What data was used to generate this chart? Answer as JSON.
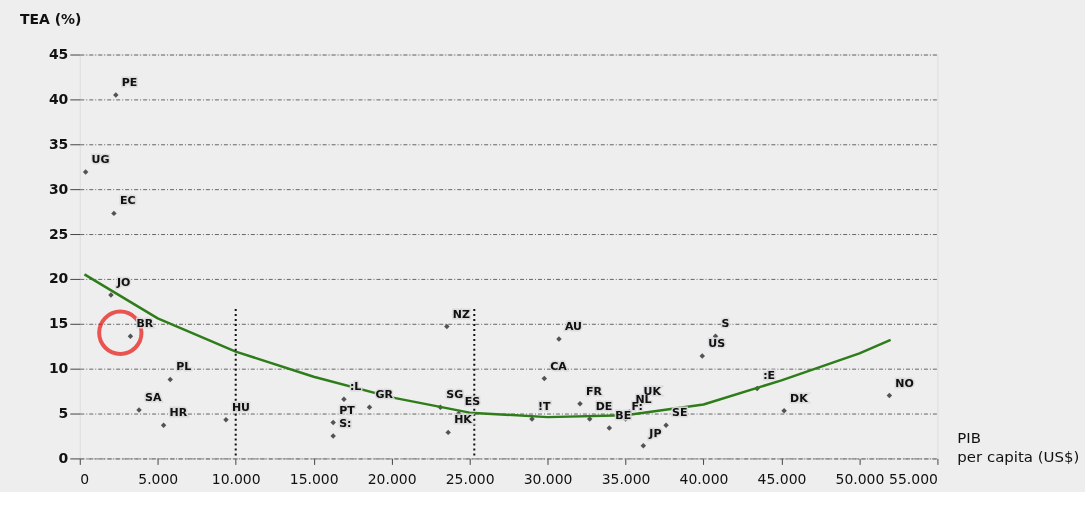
{
  "chart_data": {
    "type": "scatter",
    "ylabel": "TEA (%)",
    "xlabel": "PIB per capita (US$)",
    "series": [
      {
        "type": "scatter",
        "color": "#111111",
        "marker": "diamond",
        "x": [
          2310,
          375,
          2190,
          2000,
          3250,
          3800,
          5375,
          5800,
          9375,
          16940,
          16250,
          16250,
          18580,
          23125,
          24300,
          23625,
          23540,
          29000,
          30730,
          29790,
          32080,
          32700,
          33960,
          35250,
          35000,
          35770,
          37600,
          36140,
          39920,
          40770,
          43440,
          45170,
          51920
        ],
        "values": [
          40.5,
          31.9,
          27.3,
          18.2,
          13.6,
          5.4,
          3.7,
          8.8,
          4.3,
          6.6,
          4.0,
          2.5,
          5.7,
          5.7,
          5.0,
          2.9,
          14.7,
          4.4,
          13.3,
          8.9,
          6.1,
          4.4,
          3.4,
          5.2,
          4.4,
          6.1,
          3.7,
          1.4,
          11.4,
          13.6,
          7.8,
          5.3,
          7.0
        ],
        "value_labels": [
          "PE",
          "UG",
          "EC",
          "JO",
          "BR",
          "SA",
          "HR",
          "PL",
          "HU",
          ":L",
          "PT",
          "S:",
          "GR",
          "SG",
          "ES",
          "HK",
          "NZ",
          "!T",
          "AU",
          "CA",
          "FR",
          "DE",
          "BE",
          "NL",
          "F:",
          "UK",
          "SE",
          "JP",
          "US",
          "S",
          ":E",
          "DK",
          "NO"
        ]
      },
      {
        "type": "line",
        "color": "#2e7d1a",
        "x": [
          300,
          5000,
          10000,
          15000,
          20000,
          25000,
          30000,
          35000,
          40000,
          45000,
          50000,
          52000
        ],
        "values": [
          20.5,
          15.6,
          11.9,
          9.1,
          6.8,
          5.1,
          4.6,
          4.8,
          6.0,
          8.7,
          11.7,
          13.2
        ]
      },
      {
        "type": "scatter",
        "color": "#e8130f",
        "marker": "circle",
        "x": [
          2600
        ],
        "values": [
          14.0
        ]
      }
    ],
    "xlim": [
      0,
      55000
    ],
    "ylim": [
      0,
      45
    ],
    "xticks": [
      0,
      {
        "value": 5000,
        "label": "5.000"
      },
      {
        "value": 10000,
        "label": "10.000"
      },
      {
        "value": 15000,
        "label": "15.000"
      },
      {
        "value": 20000,
        "label": "20.000"
      },
      {
        "value": 25000,
        "label": "25.000"
      },
      {
        "value": 30000,
        "label": "30.000"
      },
      {
        "value": 35000,
        "label": "35.000"
      },
      {
        "value": 40000,
        "label": "40.000"
      },
      {
        "value": 45000,
        "label": "45.000"
      },
      {
        "value": 50000,
        "label": "50.000"
      },
      {
        "value": 55000,
        "label": "55.000"
      }
    ],
    "yticks": [
      0,
      5,
      10,
      15,
      20,
      25,
      30,
      35,
      40,
      45
    ],
    "ref_lines": [
      {
        "axis": "x",
        "value": 10000,
        "line_style": "dotted",
        "color": "#111111"
      },
      {
        "axis": "x",
        "value": 25300,
        "line_style": "dotted",
        "color": "#111111"
      }
    ],
    "grid": "y"
  }
}
